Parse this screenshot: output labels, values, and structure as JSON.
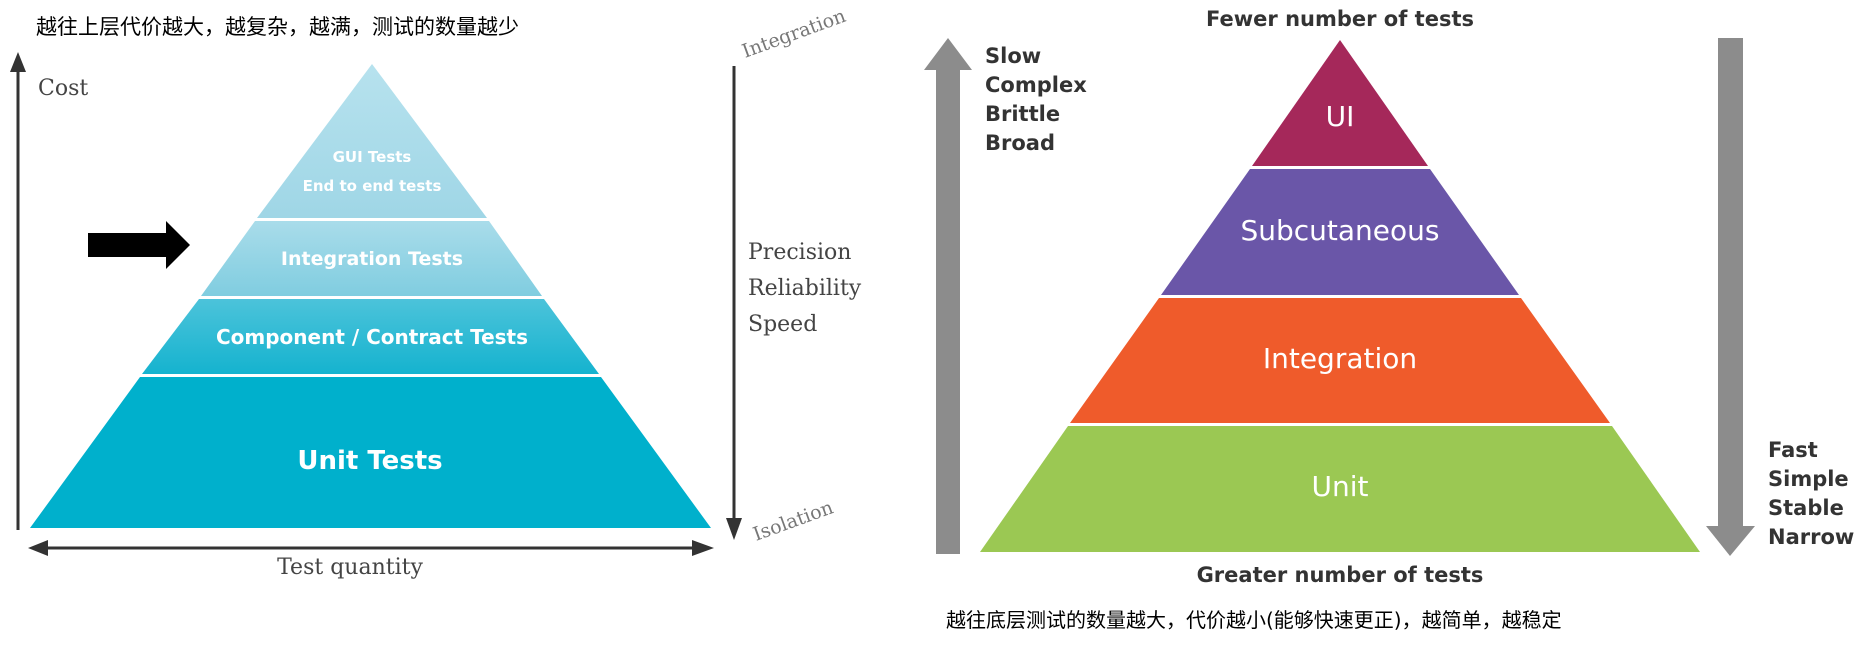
{
  "left": {
    "caption": "越往上层代价越大，越复杂，越满，测试的数量越少",
    "y_axis_label": "Cost",
    "x_axis_label": "Test quantity",
    "right_top_label": "Integration",
    "right_bottom_label": "Isolation",
    "qualities": [
      "Precision",
      "Reliability",
      "Speed"
    ],
    "layers": [
      {
        "line1": "GUI Tests",
        "line2": "End to end tests",
        "color": "#a9dce9"
      },
      {
        "line1": "Integration Tests",
        "color": "#8fd2e3"
      },
      {
        "line1": "Component / Contract Tests",
        "color": "#2ab9d2"
      },
      {
        "line1": "Unit Tests",
        "color": "#00b0cc"
      }
    ],
    "arrow_color": "#000000"
  },
  "right": {
    "top_label": "Fewer number of tests",
    "bottom_label": "Greater number of tests",
    "up_traits": [
      "Slow",
      "Complex",
      "Brittle",
      "Broad"
    ],
    "down_traits": [
      "Fast",
      "Simple",
      "Stable",
      "Narrow"
    ],
    "layers": [
      {
        "label": "UI",
        "color": "#a5285a"
      },
      {
        "label": "Subcutaneous",
        "color": "#6a56a8"
      },
      {
        "label": "Integration",
        "color": "#ef5b2b"
      },
      {
        "label": "Unit",
        "color": "#9bc853"
      }
    ],
    "caption": "越往底层测试的数量越大，代价越小(能够快速更正)，越简单，越稳定",
    "arrow_color": "#8c8c8c"
  }
}
